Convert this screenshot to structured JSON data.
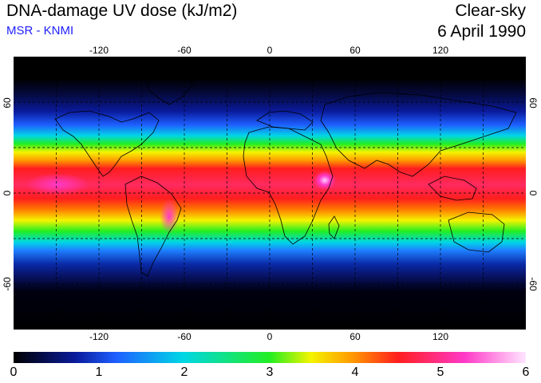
{
  "header": {
    "title": "DNA-damage UV dose (kJ/m2)",
    "subtitle": "MSR - KNMI",
    "condition": "Clear-sky",
    "date": "6 April 1990"
  },
  "map": {
    "projection": "equirectangular",
    "lon_range": [
      -180,
      180
    ],
    "lat_range": [
      -90,
      90
    ],
    "lon_ticks": [
      -120,
      -60,
      0,
      60,
      120
    ],
    "lon_tick_labels": [
      "-120",
      "-60",
      "0",
      "60",
      "120"
    ],
    "lat_ticks": [
      60,
      0,
      -60
    ],
    "lat_tick_labels": [
      "60",
      "0",
      "-60"
    ],
    "gridlines": "dashed, 30 degrees",
    "field_colors": {
      "background_low": "#000000",
      "band_deep_blue": "#0a1a9a",
      "band_blue": "#1e5fff",
      "band_cyan": "#00e6e6",
      "band_green": "#22ee22",
      "band_yellow": "#f4f400",
      "band_orange": "#ff9a00",
      "band_red": "#ff1e1e",
      "band_magenta": "#ff39c8"
    }
  },
  "colorbar": {
    "min": 0,
    "max": 6,
    "tick_labels": [
      "0",
      "1",
      "2",
      "3",
      "4",
      "5",
      "6"
    ]
  }
}
